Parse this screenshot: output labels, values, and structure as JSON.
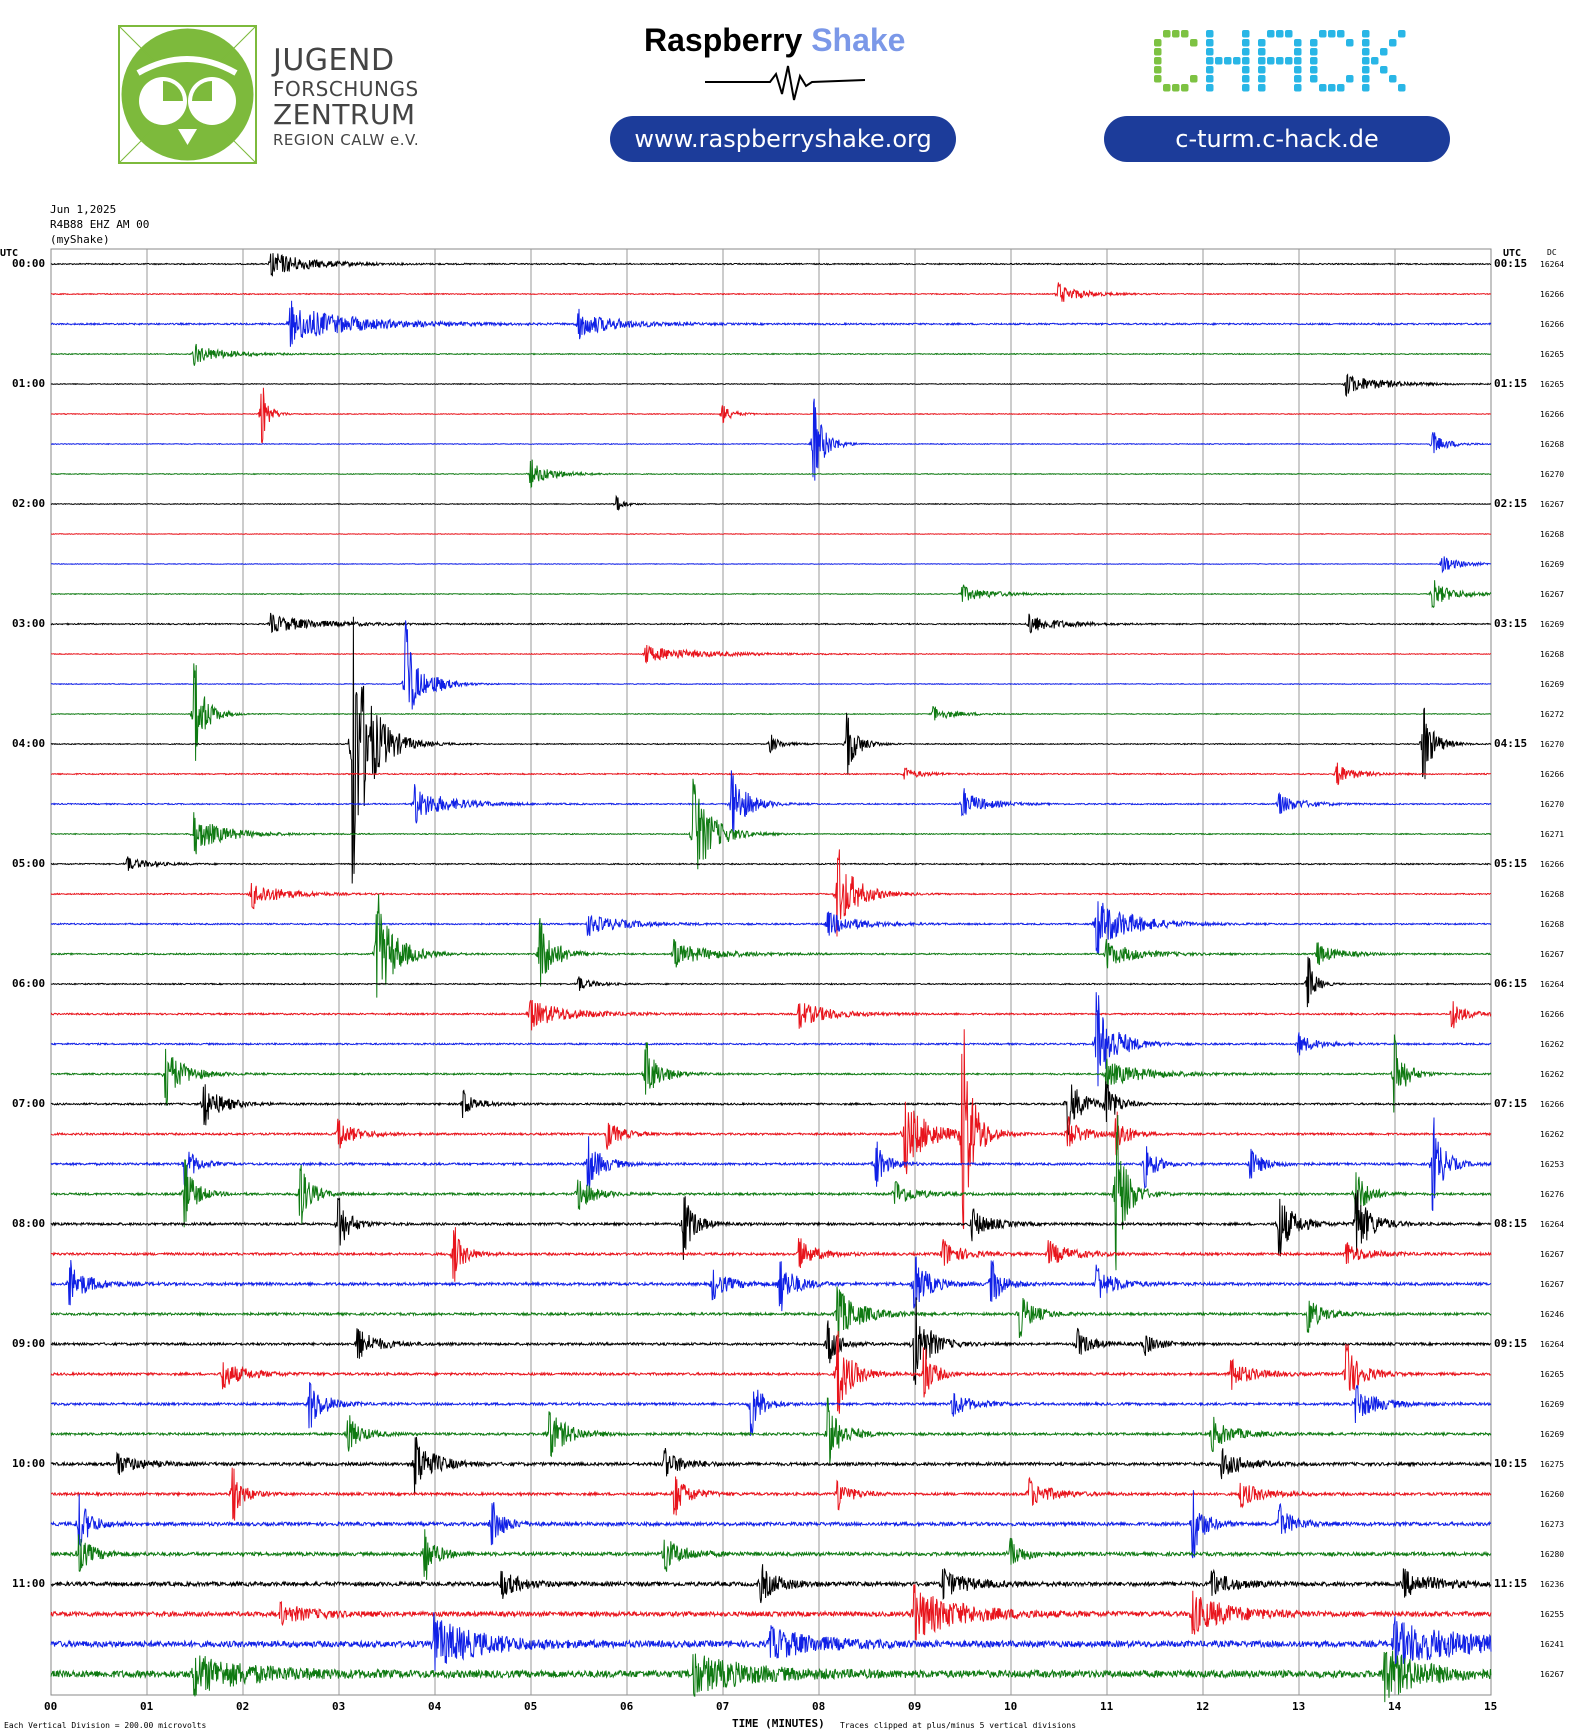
{
  "logos": {
    "jfz": {
      "line1": "JUGEND",
      "line2": "FORSCHUNGS",
      "line3": "ZENTRUM",
      "line4": "REGION CALW e.V.",
      "color": "#7dba3c"
    },
    "raspberry_shake": {
      "name_part1": "Raspberry",
      "name_part2": "Shake",
      "url": "www.raspberryshake.org"
    },
    "chack": {
      "name": "CHACK",
      "url": "c-turm.c-hack.de",
      "color_c": "#7dc242",
      "color_hack": "#29b6e6"
    }
  },
  "header": {
    "date": "Jun 1,2025",
    "station": "R4B88 EHZ AM 00",
    "source": "(myShake)",
    "left_axis_title": "UTC",
    "right_axis_title": "UTC",
    "dc_title": "DC"
  },
  "footer": {
    "scale_note": "Each Vertical Division =  200.00 microvolts",
    "x_axis_title": "TIME (MINUTES)",
    "clip_note": "Traces clipped at plus/minus 5 vertical divisions"
  },
  "chart_data": {
    "type": "line",
    "subtype": "helicorder",
    "x_axis": {
      "title": "TIME (MINUTES)",
      "range": [
        0,
        15
      ],
      "ticks": [
        "00",
        "01",
        "02",
        "03",
        "04",
        "05",
        "06",
        "07",
        "08",
        "09",
        "10",
        "11",
        "12",
        "13",
        "14",
        "15"
      ]
    },
    "trace_colors": [
      "#000000",
      "#e8141c",
      "#1020e6",
      "#0f7a12"
    ],
    "left_hour_labels": [
      "00:00",
      "01:00",
      "02:00",
      "03:00",
      "04:00",
      "05:00",
      "06:00",
      "07:00",
      "08:00",
      "09:00",
      "10:00",
      "11:00"
    ],
    "right_hour_labels": [
      "00:15",
      "01:15",
      "02:15",
      "03:15",
      "04:15",
      "05:15",
      "06:15",
      "07:15",
      "08:15",
      "09:15",
      "10:15",
      "11:15"
    ],
    "dc_offsets": [
      16264,
      16266,
      16266,
      16265,
      16265,
      16266,
      16268,
      16270,
      16267,
      16268,
      16269,
      16267,
      16269,
      16268,
      16269,
      16272,
      16270,
      16266,
      16270,
      16271,
      16266,
      16268,
      16268,
      16267,
      16264,
      16266,
      16262,
      16262,
      16266,
      16262,
      16253,
      16276,
      16264,
      16267,
      16267,
      16246,
      16264,
      16265,
      16269,
      16269,
      16275,
      16260,
      16273,
      16280,
      16236,
      16255,
      16241,
      16267
    ],
    "traces": [
      {
        "noise": 0.6,
        "events": [
          [
            2.3,
            2.0,
            1.0
          ]
        ]
      },
      {
        "noise": 0.5,
        "events": [
          [
            10.5,
            1.5,
            0.6
          ]
        ]
      },
      {
        "noise": 0.8,
        "events": [
          [
            2.5,
            3.0,
            1.6
          ],
          [
            5.5,
            2.0,
            1.0
          ]
        ]
      },
      {
        "noise": 0.5,
        "events": [
          [
            1.5,
            1.5,
            0.8
          ]
        ]
      },
      {
        "noise": 0.4,
        "events": [
          [
            13.5,
            1.5,
            1.0
          ]
        ]
      },
      {
        "noise": 0.4,
        "events": [
          [
            2.2,
            4.0,
            0.2
          ],
          [
            7.0,
            1.2,
            0.3
          ]
        ]
      },
      {
        "noise": 0.4,
        "events": [
          [
            7.95,
            6.0,
            0.3
          ],
          [
            14.4,
            1.5,
            0.4
          ]
        ]
      },
      {
        "noise": 0.4,
        "events": [
          [
            5.0,
            1.8,
            0.6
          ]
        ]
      },
      {
        "noise": 0.4,
        "events": [
          [
            5.9,
            1.0,
            0.2
          ]
        ]
      },
      {
        "noise": 0.3,
        "events": []
      },
      {
        "noise": 0.3,
        "events": [
          [
            14.5,
            1.2,
            0.5
          ]
        ]
      },
      {
        "noise": 0.4,
        "events": [
          [
            9.5,
            1.2,
            0.8
          ],
          [
            14.4,
            1.8,
            0.6
          ]
        ]
      },
      {
        "noise": 0.6,
        "events": [
          [
            2.3,
            1.4,
            1.2
          ],
          [
            10.2,
            1.4,
            0.8
          ]
        ]
      },
      {
        "noise": 0.4,
        "events": [
          [
            6.2,
            1.2,
            1.5
          ]
        ]
      },
      {
        "noise": 0.4,
        "events": [
          [
            3.7,
            8.0,
            0.3
          ],
          [
            4.0,
            1.0,
            0.5
          ]
        ]
      },
      {
        "noise": 0.4,
        "events": [
          [
            1.5,
            7.0,
            0.3
          ],
          [
            9.2,
            1.0,
            0.6
          ]
        ]
      },
      {
        "noise": 0.5,
        "events": [
          [
            3.15,
            18.0,
            0.5
          ],
          [
            7.5,
            1.2,
            0.3
          ],
          [
            8.3,
            4.0,
            0.3
          ],
          [
            14.3,
            5.0,
            0.3
          ]
        ]
      },
      {
        "noise": 0.6,
        "events": [
          [
            13.4,
            1.5,
            0.5
          ],
          [
            8.9,
            0.8,
            0.5
          ]
        ]
      },
      {
        "noise": 0.6,
        "events": [
          [
            3.8,
            2.5,
            0.9
          ],
          [
            7.1,
            5.0,
            0.4
          ],
          [
            9.5,
            2.0,
            0.6
          ],
          [
            12.8,
            1.5,
            0.6
          ]
        ]
      },
      {
        "noise": 0.5,
        "events": [
          [
            1.5,
            2.8,
            0.8
          ],
          [
            6.7,
            7.5,
            0.5
          ]
        ]
      },
      {
        "noise": 0.6,
        "events": [
          [
            0.8,
            1.0,
            0.6
          ]
        ]
      },
      {
        "noise": 0.6,
        "events": [
          [
            2.1,
            2.0,
            0.8
          ],
          [
            8.2,
            6.0,
            0.5
          ]
        ]
      },
      {
        "noise": 0.7,
        "events": [
          [
            5.6,
            1.5,
            1.0
          ],
          [
            8.1,
            1.8,
            0.8
          ],
          [
            10.9,
            4.0,
            0.9
          ]
        ]
      },
      {
        "noise": 0.7,
        "events": [
          [
            3.4,
            8.0,
            0.5
          ],
          [
            5.1,
            5.0,
            0.4
          ],
          [
            6.5,
            1.8,
            1.0
          ],
          [
            11.0,
            2.0,
            0.8
          ],
          [
            13.2,
            1.5,
            0.6
          ]
        ]
      },
      {
        "noise": 0.6,
        "events": [
          [
            13.1,
            3.5,
            0.2
          ],
          [
            5.5,
            1.0,
            0.4
          ]
        ]
      },
      {
        "noise": 0.8,
        "events": [
          [
            5.0,
            2.2,
            1.0
          ],
          [
            7.8,
            2.0,
            0.8
          ],
          [
            14.6,
            1.8,
            0.4
          ]
        ]
      },
      {
        "noise": 0.8,
        "events": [
          [
            10.9,
            6.5,
            0.5
          ],
          [
            13.0,
            1.5,
            0.5
          ]
        ]
      },
      {
        "noise": 0.8,
        "events": [
          [
            1.2,
            4.0,
            0.5
          ],
          [
            6.2,
            4.0,
            0.4
          ],
          [
            11.0,
            2.0,
            1.0
          ],
          [
            14.0,
            5.0,
            0.3
          ]
        ]
      },
      {
        "noise": 0.9,
        "events": [
          [
            1.6,
            3.0,
            0.5
          ],
          [
            4.3,
            1.8,
            0.4
          ],
          [
            10.6,
            4.0,
            0.4
          ],
          [
            11.0,
            3.0,
            0.3
          ]
        ]
      },
      {
        "noise": 1.0,
        "events": [
          [
            3.0,
            2.0,
            0.5
          ],
          [
            5.8,
            2.0,
            0.4
          ],
          [
            8.9,
            5.5,
            0.6
          ],
          [
            9.5,
            14.0,
            0.3
          ],
          [
            10.6,
            2.5,
            0.4
          ],
          [
            11.1,
            3.0,
            0.3
          ]
        ]
      },
      {
        "noise": 1.1,
        "events": [
          [
            1.4,
            3.0,
            0.3
          ],
          [
            5.6,
            3.5,
            0.4
          ],
          [
            8.6,
            3.0,
            0.3
          ],
          [
            11.4,
            3.0,
            0.3
          ],
          [
            12.5,
            2.0,
            0.4
          ],
          [
            14.4,
            6.0,
            0.3
          ]
        ]
      },
      {
        "noise": 1.1,
        "events": [
          [
            1.4,
            4.5,
            0.3
          ],
          [
            2.6,
            4.5,
            0.3
          ],
          [
            5.5,
            2.5,
            0.4
          ],
          [
            8.8,
            2.0,
            0.5
          ],
          [
            11.1,
            10.0,
            0.3
          ],
          [
            13.6,
            4.0,
            0.3
          ]
        ]
      },
      {
        "noise": 1.2,
        "events": [
          [
            3.0,
            4.0,
            0.3
          ],
          [
            6.6,
            4.5,
            0.3
          ],
          [
            9.6,
            2.2,
            0.5
          ],
          [
            12.8,
            4.5,
            0.4
          ],
          [
            13.6,
            5.0,
            0.4
          ]
        ]
      },
      {
        "noise": 1.2,
        "events": [
          [
            4.2,
            3.5,
            0.3
          ],
          [
            7.8,
            2.0,
            0.5
          ],
          [
            9.3,
            2.0,
            0.5
          ],
          [
            10.4,
            1.8,
            0.6
          ],
          [
            13.5,
            1.5,
            0.6
          ]
        ]
      },
      {
        "noise": 1.4,
        "events": [
          [
            0.2,
            3.0,
            0.5
          ],
          [
            6.9,
            2.0,
            0.5
          ],
          [
            7.6,
            3.5,
            0.4
          ],
          [
            9.0,
            4.0,
            0.4
          ],
          [
            9.8,
            3.5,
            0.3
          ],
          [
            10.9,
            2.5,
            0.5
          ]
        ]
      },
      {
        "noise": 1.2,
        "events": [
          [
            8.2,
            4.0,
            0.6
          ],
          [
            10.1,
            3.0,
            0.4
          ],
          [
            13.1,
            2.5,
            0.4
          ]
        ]
      },
      {
        "noise": 1.2,
        "events": [
          [
            3.2,
            2.5,
            0.5
          ],
          [
            8.1,
            3.0,
            0.3
          ],
          [
            9.0,
            6.0,
            0.4
          ],
          [
            10.7,
            2.0,
            0.4
          ],
          [
            11.4,
            1.5,
            0.4
          ]
        ]
      },
      {
        "noise": 1.2,
        "events": [
          [
            1.8,
            2.0,
            0.6
          ],
          [
            8.2,
            5.5,
            0.4
          ],
          [
            9.1,
            3.5,
            0.3
          ],
          [
            12.3,
            2.0,
            0.6
          ],
          [
            13.5,
            4.0,
            0.4
          ]
        ]
      },
      {
        "noise": 1.2,
        "events": [
          [
            2.7,
            3.5,
            0.4
          ],
          [
            7.3,
            4.0,
            0.3
          ],
          [
            9.4,
            1.8,
            0.5
          ],
          [
            13.6,
            2.5,
            0.6
          ]
        ]
      },
      {
        "noise": 1.2,
        "events": [
          [
            3.1,
            2.5,
            0.4
          ],
          [
            5.2,
            3.5,
            0.5
          ],
          [
            8.1,
            4.5,
            0.4
          ],
          [
            12.1,
            2.2,
            0.6
          ]
        ]
      },
      {
        "noise": 1.5,
        "events": [
          [
            0.7,
            1.5,
            0.6
          ],
          [
            3.8,
            4.0,
            0.5
          ],
          [
            6.4,
            2.0,
            0.5
          ],
          [
            12.2,
            2.0,
            0.6
          ]
        ]
      },
      {
        "noise": 1.3,
        "events": [
          [
            1.9,
            3.5,
            0.3
          ],
          [
            6.5,
            3.0,
            0.4
          ],
          [
            8.2,
            2.0,
            0.4
          ],
          [
            10.2,
            2.0,
            0.6
          ],
          [
            12.4,
            1.8,
            0.6
          ]
        ]
      },
      {
        "noise": 1.7,
        "events": [
          [
            0.3,
            4.0,
            0.3
          ],
          [
            4.6,
            3.5,
            0.3
          ],
          [
            11.9,
            4.5,
            0.3
          ],
          [
            12.8,
            2.5,
            0.4
          ]
        ]
      },
      {
        "noise": 1.7,
        "events": [
          [
            0.3,
            2.5,
            0.4
          ],
          [
            3.9,
            3.5,
            0.3
          ],
          [
            6.4,
            2.5,
            0.5
          ],
          [
            10.0,
            2.0,
            0.4
          ]
        ]
      },
      {
        "noise": 2.0,
        "events": [
          [
            4.7,
            2.0,
            0.5
          ],
          [
            7.4,
            2.5,
            0.5
          ],
          [
            9.3,
            2.0,
            0.7
          ],
          [
            12.1,
            1.8,
            0.6
          ],
          [
            14.1,
            2.0,
            0.8
          ]
        ]
      },
      {
        "noise": 2.3,
        "events": [
          [
            9.0,
            4.0,
            1.2
          ],
          [
            11.9,
            3.0,
            1.0
          ],
          [
            2.4,
            1.5,
            0.8
          ]
        ]
      },
      {
        "noise": 3.0,
        "events": [
          [
            4.0,
            4.0,
            1.2
          ],
          [
            7.5,
            2.5,
            1.2
          ],
          [
            14.0,
            3.5,
            2.0
          ]
        ]
      },
      {
        "noise": 3.5,
        "events": [
          [
            1.5,
            3.0,
            1.5
          ],
          [
            6.7,
            3.0,
            1.5
          ],
          [
            13.9,
            4.0,
            1.0
          ]
        ]
      }
    ]
  }
}
